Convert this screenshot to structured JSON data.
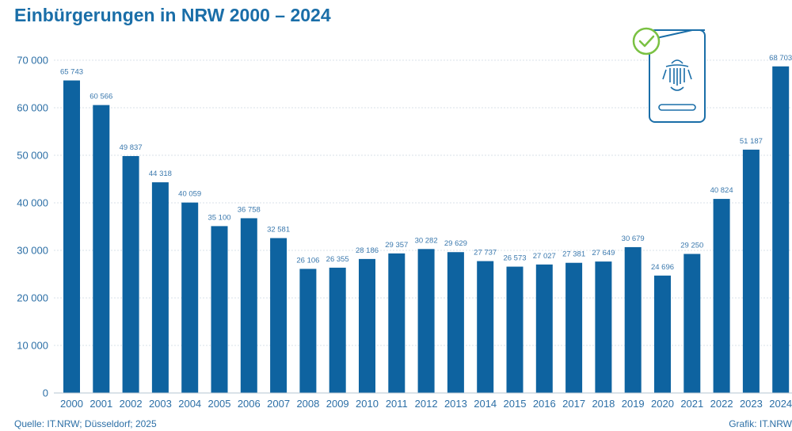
{
  "title": "Einbürgerungen in NRW 2000 – 2024",
  "footer": {
    "source": "Quelle: IT.NRW; Düsseldorf; 2025",
    "credit": "Grafik: IT.NRW"
  },
  "icon": "passport-check-icon",
  "colors": {
    "bar": "#0e63a0",
    "text": "#2c6fa6",
    "grid": "#d9e2ea",
    "accent": "#7ac142"
  },
  "chart_data": {
    "type": "bar",
    "title": "Einbürgerungen in NRW 2000 – 2024",
    "xlabel": "",
    "ylabel": "",
    "ylim": [
      0,
      70000
    ],
    "yticks": [
      0,
      10000,
      20000,
      30000,
      40000,
      50000,
      60000,
      70000
    ],
    "ytick_labels": [
      "0",
      "10 000",
      "20 000",
      "30 000",
      "40 000",
      "50 000",
      "60 000",
      "70 000"
    ],
    "grid": true,
    "categories": [
      "2000",
      "2001",
      "2002",
      "2003",
      "2004",
      "2005",
      "2006",
      "2007",
      "2008",
      "2009",
      "2010",
      "2011",
      "2012",
      "2013",
      "2014",
      "2015",
      "2016",
      "2017",
      "2018",
      "2019",
      "2020",
      "2021",
      "2022",
      "2023",
      "2024"
    ],
    "values": [
      65743,
      60566,
      49837,
      44318,
      40059,
      35100,
      36758,
      32581,
      26106,
      26355,
      28186,
      29357,
      30282,
      29629,
      27737,
      26573,
      27027,
      27381,
      27649,
      30679,
      24696,
      29250,
      40824,
      51187,
      68703
    ],
    "value_labels": [
      "65 743",
      "60 566",
      "49 837",
      "44 318",
      "40 059",
      "35 100",
      "36 758",
      "32 581",
      "26 106",
      "26 355",
      "28 186",
      "29 357",
      "30 282",
      "29 629",
      "27 737",
      "26 573",
      "27 027",
      "27 381",
      "27 649",
      "30 679",
      "24 696",
      "29 250",
      "40 824",
      "51 187",
      "68 703"
    ]
  }
}
